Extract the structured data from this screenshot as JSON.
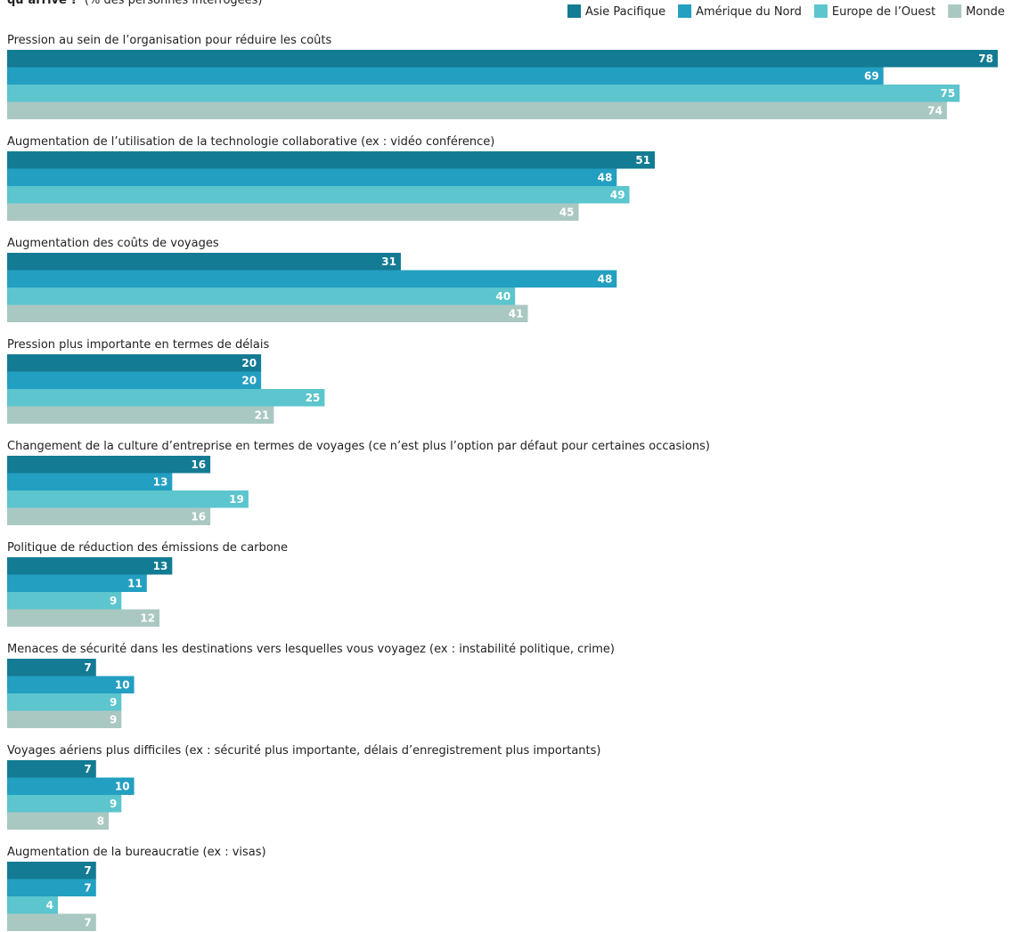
{
  "chart_data": {
    "type": "bar",
    "orientation": "horizontal",
    "title": "qu’arrive ?",
    "subtitle": "(% des personnes interrogées)",
    "categories": [
      "Pression au sein de l’organisation pour réduire les coûts",
      "Augmentation de l’utilisation de la technologie collaborative (ex : vidéo conférence)",
      "Augmentation des coûts de voyages",
      "Pression plus importante en termes de délais",
      "Changement de la culture d’entreprise en termes de voyages (ce n’est plus l’option par défaut pour certaines occasions)",
      "Politique de réduction des émissions de carbone",
      "Menaces de sécurité dans les destinations vers lesquelles vous voyagez (ex : instabilité politique, crime)",
      "Voyages aériens plus difficiles (ex : sécurité plus importante, délais d’enregistrement plus importants)",
      "Augmentation de la bureaucratie (ex : visas)"
    ],
    "series": [
      {
        "name": "Asie Pacifique",
        "color": "#137b93",
        "values": [
          78,
          51,
          31,
          20,
          16,
          13,
          7,
          7,
          7
        ]
      },
      {
        "name": "Amérique du Nord",
        "color": "#239fc1",
        "values": [
          69,
          48,
          48,
          20,
          13,
          11,
          10,
          10,
          7
        ]
      },
      {
        "name": "Europe de l’Ouest",
        "color": "#5cc5cd",
        "values": [
          75,
          49,
          40,
          25,
          19,
          9,
          9,
          9,
          4
        ]
      },
      {
        "name": "Monde",
        "color": "#aac8c2",
        "values": [
          74,
          45,
          41,
          21,
          16,
          12,
          9,
          8,
          7
        ]
      }
    ],
    "legend": "top-right"
  }
}
